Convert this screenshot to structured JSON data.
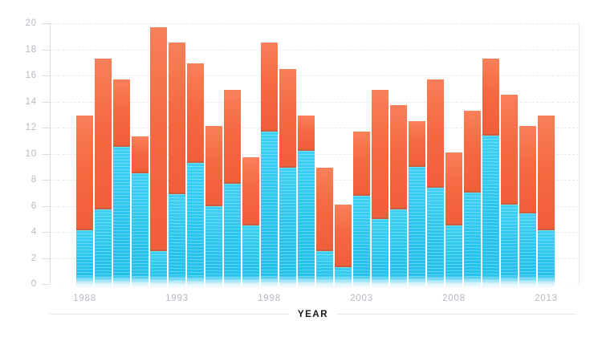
{
  "chart_data": {
    "type": "bar",
    "stacked": true,
    "title": "",
    "xlabel": "YEAR",
    "ylabel": "",
    "ylim": [
      0,
      20
    ],
    "y_ticks": [
      0,
      2,
      4,
      6,
      8,
      10,
      12,
      14,
      16,
      18,
      20
    ],
    "x_tick_labels": [
      "1988",
      "1993",
      "1998",
      "2003",
      "2008",
      "2013"
    ],
    "grid": "horizontal-dashed",
    "legend": "none",
    "categories": [
      1988,
      1989,
      1990,
      1991,
      1992,
      1993,
      1994,
      1995,
      1996,
      1997,
      1998,
      1999,
      2000,
      2001,
      2002,
      2003,
      2004,
      2005,
      2006,
      2007,
      2008,
      2009,
      2010,
      2011,
      2012,
      2013
    ],
    "series": [
      {
        "name": "bottom-segment-cyan",
        "color": "#29c6ef",
        "values": [
          4.1,
          5.7,
          10.5,
          8.5,
          2.5,
          6.9,
          9.3,
          6.0,
          7.7,
          4.5,
          11.7,
          8.9,
          10.2,
          2.5,
          1.3,
          6.8,
          5.0,
          5.7,
          9.0,
          7.4,
          4.5,
          7.0,
          11.4,
          6.1,
          5.4,
          4.1
        ]
      },
      {
        "name": "top-segment-orange",
        "color": "#f4683f",
        "values": [
          8.8,
          11.6,
          5.2,
          2.8,
          17.2,
          11.6,
          7.6,
          6.1,
          7.2,
          5.2,
          6.8,
          7.6,
          2.7,
          6.4,
          4.8,
          4.9,
          9.9,
          8.0,
          3.5,
          8.3,
          5.6,
          6.3,
          5.9,
          8.4,
          6.7,
          8.8
        ]
      }
    ],
    "totals": [
      12.9,
      17.3,
      15.7,
      11.3,
      19.7,
      18.5,
      16.9,
      12.1,
      14.9,
      9.7,
      18.5,
      16.5,
      12.9,
      8.9,
      6.1,
      11.7,
      14.9,
      13.7,
      12.5,
      15.7,
      10.1,
      13.3,
      17.3,
      14.5,
      12.1,
      12.9
    ]
  },
  "colors": {
    "cyan": "#29c6ef",
    "orange": "#f4683f",
    "axis": "#d6dade",
    "grid": "#e6e8ec",
    "tick_label": "#b4bac3",
    "xaxis_title": "#17191c"
  }
}
